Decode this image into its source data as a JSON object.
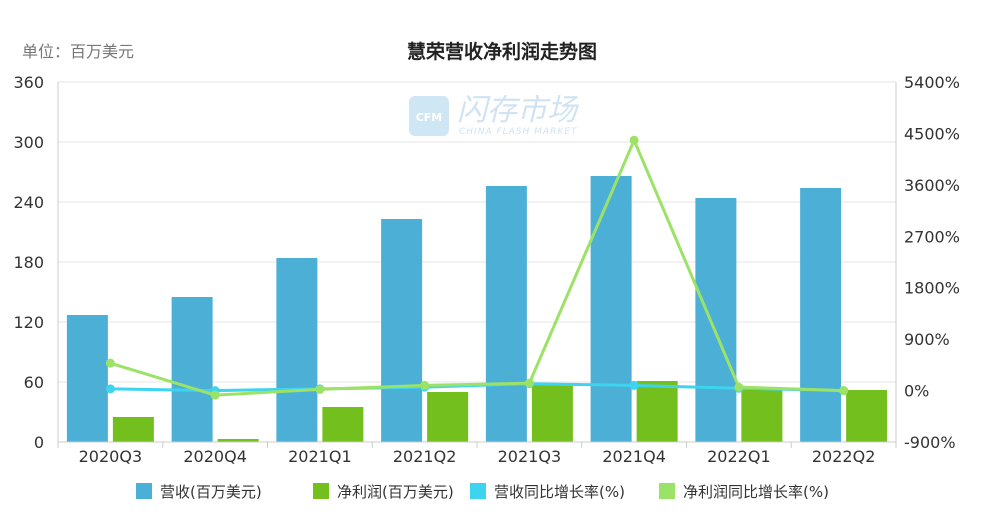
{
  "unit_label": "单位：百万美元",
  "watermark": {
    "cn": "闪存市场",
    "en": "CHINA FLASH MARKET",
    "logo": "CFM"
  },
  "colors": {
    "revenue": "#4bafd6",
    "net_profit": "#73bf1e",
    "revenue_yoy": "#3fd4ee",
    "profit_yoy": "#9ce266",
    "grid": "#e6e6e6",
    "axis": "#cccccc"
  },
  "chart_data": {
    "type": "bar",
    "title": "慧荣营收净利润走势图",
    "categories": [
      "2020Q3",
      "2020Q4",
      "2021Q1",
      "2021Q2",
      "2021Q3",
      "2021Q4",
      "2022Q1",
      "2022Q2"
    ],
    "series": [
      {
        "name": "营收(百万美元)",
        "kind": "bar",
        "axis": "left",
        "values": [
          127,
          145,
          184,
          223,
          256,
          266,
          244,
          254
        ]
      },
      {
        "name": "净利润(百万美元)",
        "kind": "bar",
        "axis": "left",
        "values": [
          25,
          3,
          35,
          50,
          57,
          61,
          55,
          52
        ]
      },
      {
        "name": "营收同比增长率(%)",
        "kind": "line",
        "axis": "right",
        "values": [
          30,
          0,
          30,
          60,
          120,
          90,
          40,
          0
        ]
      },
      {
        "name": "净利润同比增长率(%)",
        "kind": "line",
        "axis": "right",
        "values": [
          480,
          -80,
          20,
          90,
          130,
          4380,
          60,
          0
        ]
      }
    ],
    "y_left": {
      "min": 0,
      "max": 360,
      "ticks": [
        "0",
        "60",
        "120",
        "180",
        "240",
        "300",
        "360"
      ]
    },
    "y_right": {
      "min": -900,
      "max": 5400,
      "ticks": [
        "-900%",
        "0%",
        "900%",
        "1800%",
        "2700%",
        "3600%",
        "4500%",
        "5400%"
      ]
    },
    "grid": true,
    "legend_position": "bottom"
  }
}
